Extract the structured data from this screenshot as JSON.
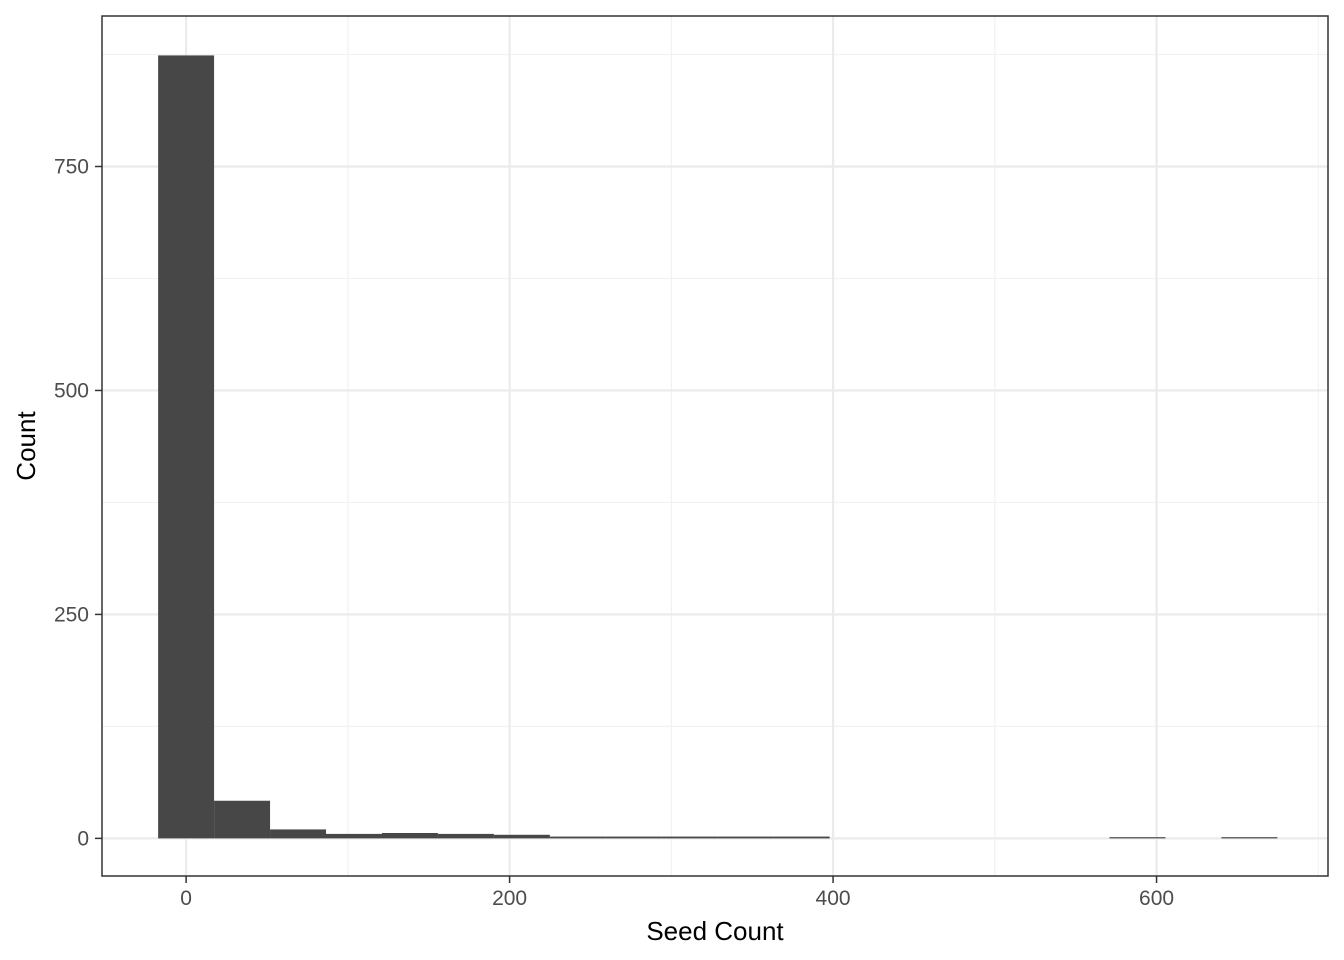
{
  "chart_data": {
    "type": "bar",
    "title": "",
    "xlabel": "Seed Count",
    "ylabel": "Count",
    "xlim": [
      -52,
      706
    ],
    "ylim": [
      -42,
      918
    ],
    "x_ticks": [
      0,
      200,
      400,
      600
    ],
    "y_ticks": [
      0,
      250,
      500,
      750
    ],
    "x_minor_ticks": [
      -100,
      100,
      300,
      500,
      700
    ],
    "y_minor_ticks": [
      125,
      375,
      625,
      875
    ],
    "grid": true,
    "bin_width": 34.6,
    "bins": [
      {
        "x0": -17.3,
        "x1": 17.3,
        "count": 874
      },
      {
        "x0": 17.3,
        "x1": 51.9,
        "count": 42
      },
      {
        "x0": 51.9,
        "x1": 86.5,
        "count": 10
      },
      {
        "x0": 86.5,
        "x1": 121.1,
        "count": 5
      },
      {
        "x0": 121.1,
        "x1": 155.7,
        "count": 6
      },
      {
        "x0": 155.7,
        "x1": 190.3,
        "count": 5
      },
      {
        "x0": 190.3,
        "x1": 224.9,
        "count": 4
      },
      {
        "x0": 224.9,
        "x1": 259.5,
        "count": 2
      },
      {
        "x0": 259.5,
        "x1": 294.1,
        "count": 2
      },
      {
        "x0": 294.1,
        "x1": 328.7,
        "count": 2
      },
      {
        "x0": 328.7,
        "x1": 363.3,
        "count": 2
      },
      {
        "x0": 363.3,
        "x1": 397.9,
        "count": 2
      },
      {
        "x0": 397.9,
        "x1": 432.5,
        "count": 0
      },
      {
        "x0": 432.5,
        "x1": 467.1,
        "count": 0
      },
      {
        "x0": 467.1,
        "x1": 501.7,
        "count": 0
      },
      {
        "x0": 501.7,
        "x1": 536.3,
        "count": 0
      },
      {
        "x0": 536.3,
        "x1": 570.9,
        "count": 0
      },
      {
        "x0": 570.9,
        "x1": 605.5,
        "count": 1
      },
      {
        "x0": 605.5,
        "x1": 640.1,
        "count": 0
      },
      {
        "x0": 640.1,
        "x1": 674.7,
        "count": 1
      }
    ],
    "colors": {
      "bar": "#474747",
      "panel_border": "#333333",
      "grid_major": "#ebebeb",
      "grid_minor": "#f2f2f2",
      "tick": "#333333"
    }
  }
}
